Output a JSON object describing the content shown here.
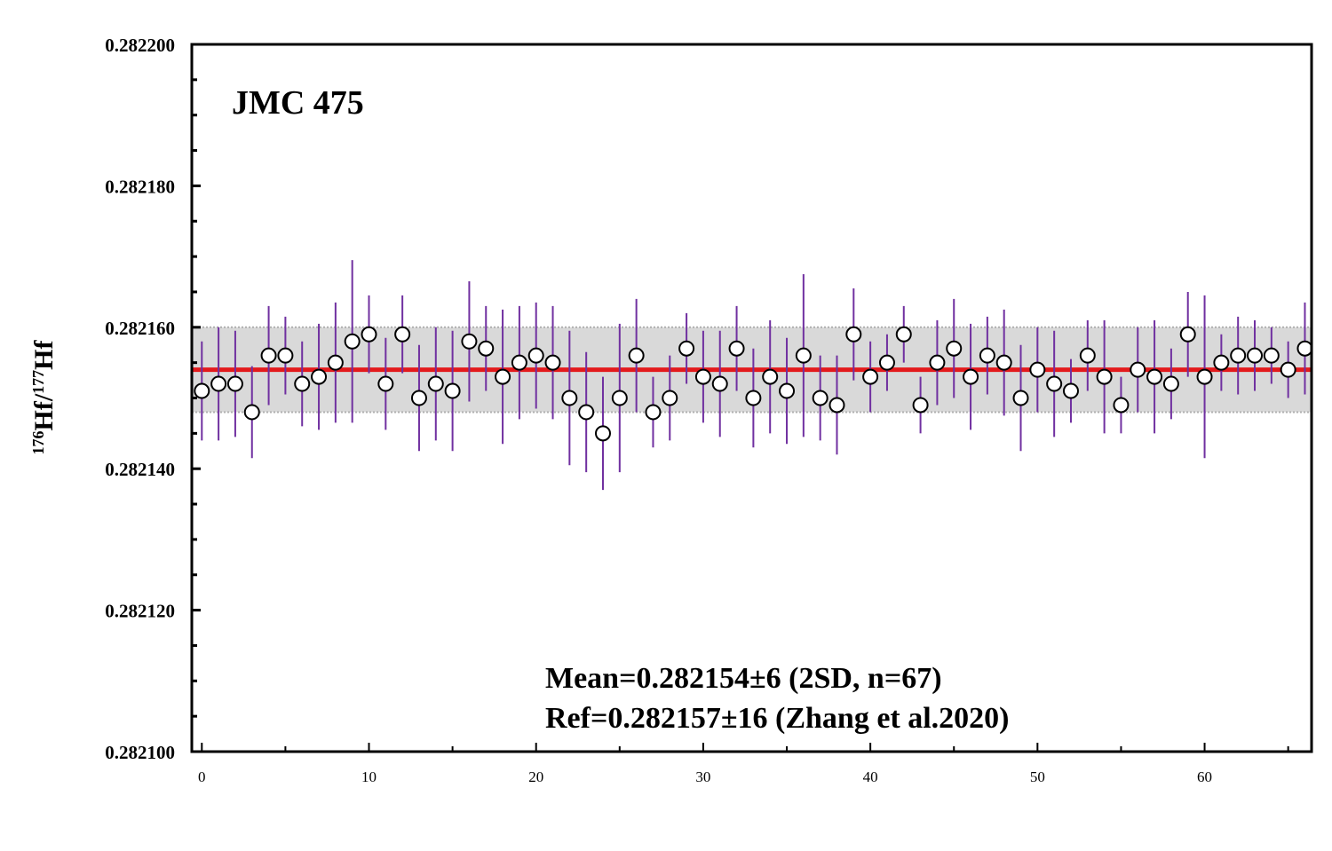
{
  "chart_data": {
    "type": "scatter",
    "title": "JMC 475",
    "ylabel": {
      "sup1": "176",
      "base1": "Hf/",
      "sup2": "177",
      "base2": "Hf"
    },
    "xlabel": "",
    "xlim": [
      -0.6,
      66.4
    ],
    "ylim": [
      0.2821,
      0.2822
    ],
    "xticks": [
      0,
      10,
      20,
      30,
      40,
      50,
      60
    ],
    "xtick_labels": [
      "0",
      "10",
      "20",
      "30",
      "40",
      "50",
      "60"
    ],
    "yticks": [
      0.2821,
      0.28212,
      0.28214,
      0.28216,
      0.28218,
      0.2822
    ],
    "ytick_labels": [
      "0.282100",
      "0.282120",
      "0.282140",
      "0.282160",
      "0.282180",
      "0.282200"
    ],
    "series": [
      {
        "values": [
          0.282151,
          0.282152,
          0.282152,
          0.282148,
          0.282156,
          0.282156,
          0.282152,
          0.282153,
          0.282155,
          0.282158,
          0.282159,
          0.282152,
          0.282159,
          0.28215,
          0.282152,
          0.282151,
          0.282158,
          0.282157,
          0.282153,
          0.282155,
          0.282156,
          0.282155,
          0.28215,
          0.282148,
          0.282145,
          0.28215,
          0.282156,
          0.282148,
          0.28215,
          0.282157,
          0.282153,
          0.282152,
          0.282157,
          0.28215,
          0.282153,
          0.282151,
          0.282156,
          0.28215,
          0.282149,
          0.282159,
          0.282153,
          0.282155,
          0.282159,
          0.282149,
          0.282155,
          0.282157,
          0.282153,
          0.282156,
          0.282155,
          0.28215,
          0.282154,
          0.282152,
          0.282151,
          0.282156,
          0.282153,
          0.282149,
          0.282154,
          0.282153,
          0.282152,
          0.282159,
          0.282153,
          0.282155,
          0.282156,
          0.282156,
          0.282156,
          0.282154,
          0.282157
        ],
        "errors": [
          7e-06,
          8e-06,
          7.5e-06,
          6.5e-06,
          7e-06,
          5.5e-06,
          6e-06,
          7.5e-06,
          8.5e-06,
          1.15e-05,
          5.5e-06,
          6.5e-06,
          5.5e-06,
          7.5e-06,
          8e-06,
          8.5e-06,
          8.5e-06,
          6e-06,
          9.5e-06,
          8e-06,
          7.5e-06,
          8e-06,
          9.5e-06,
          8.5e-06,
          8e-06,
          1.05e-05,
          8e-06,
          5e-06,
          6e-06,
          5e-06,
          6.5e-06,
          7.5e-06,
          6e-06,
          7e-06,
          8e-06,
          7.5e-06,
          1.15e-05,
          6e-06,
          7e-06,
          6.5e-06,
          5e-06,
          4e-06,
          4e-06,
          4e-06,
          6e-06,
          7e-06,
          7.5e-06,
          5.5e-06,
          7.5e-06,
          7.5e-06,
          6e-06,
          7.5e-06,
          4.5e-06,
          5e-06,
          8e-06,
          4e-06,
          6e-06,
          8e-06,
          5e-06,
          6e-06,
          1.15e-05,
          4e-06,
          5.5e-06,
          5e-06,
          4e-06,
          4e-06,
          6.5e-06
        ],
        "marker": "open-circle",
        "errorbar_color": "#7030a0"
      }
    ],
    "mean_line": {
      "value": 0.282154,
      "color": "#e31a1c"
    },
    "band": {
      "lower": 0.282148,
      "upper": 0.28216,
      "color": "#d9d9d9"
    },
    "annotations": [
      "Mean=0.282154±6 (2SD, n=67)",
      "Ref=0.282157±16 (Zhang et al.2020)"
    ],
    "grid": false,
    "legend": "none"
  }
}
